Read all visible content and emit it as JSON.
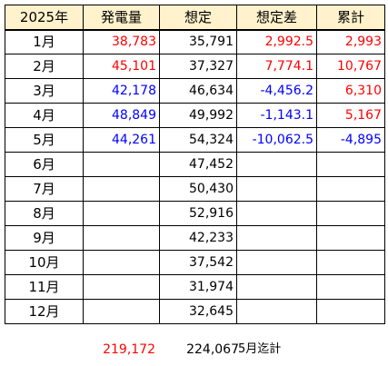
{
  "headers": [
    "2025年",
    "発電量",
    "想定",
    "想定差",
    "累計"
  ],
  "colors": {
    "header_bg": "#fff2cc",
    "positive": "#ff0000",
    "negative": "#0000ff",
    "default": "#000000"
  },
  "rows": [
    {
      "month": "1月",
      "generation": "38,783",
      "generation_color": "red",
      "expected": "35,791",
      "difference": "2,992.5",
      "difference_color": "red",
      "cumulative": "2,993",
      "cumulative_color": "red"
    },
    {
      "month": "2月",
      "generation": "45,101",
      "generation_color": "red",
      "expected": "37,327",
      "difference": "7,774.1",
      "difference_color": "red",
      "cumulative": "10,767",
      "cumulative_color": "red"
    },
    {
      "month": "3月",
      "generation": "42,178",
      "generation_color": "blue",
      "expected": "46,634",
      "difference": "-4,456.2",
      "difference_color": "blue",
      "cumulative": "6,310",
      "cumulative_color": "red"
    },
    {
      "month": "4月",
      "generation": "48,849",
      "generation_color": "blue",
      "expected": "49,992",
      "difference": "-1,143.1",
      "difference_color": "blue",
      "cumulative": "5,167",
      "cumulative_color": "red"
    },
    {
      "month": "5月",
      "generation": "44,261",
      "generation_color": "blue",
      "expected": "54,324",
      "difference": "-10,062.5",
      "difference_color": "blue",
      "cumulative": "-4,895",
      "cumulative_color": "blue"
    },
    {
      "month": "6月",
      "generation": "",
      "generation_color": "black",
      "expected": "47,452",
      "difference": "",
      "difference_color": "black",
      "cumulative": "",
      "cumulative_color": "black"
    },
    {
      "month": "7月",
      "generation": "",
      "generation_color": "black",
      "expected": "50,430",
      "difference": "",
      "difference_color": "black",
      "cumulative": "",
      "cumulative_color": "black"
    },
    {
      "month": "8月",
      "generation": "",
      "generation_color": "black",
      "expected": "52,916",
      "difference": "",
      "difference_color": "black",
      "cumulative": "",
      "cumulative_color": "black"
    },
    {
      "month": "9月",
      "generation": "",
      "generation_color": "black",
      "expected": "42,233",
      "difference": "",
      "difference_color": "black",
      "cumulative": "",
      "cumulative_color": "black"
    },
    {
      "month": "10月",
      "generation": "",
      "generation_color": "black",
      "expected": "37,542",
      "difference": "",
      "difference_color": "black",
      "cumulative": "",
      "cumulative_color": "black"
    },
    {
      "month": "11月",
      "generation": "",
      "generation_color": "black",
      "expected": "31,974",
      "difference": "",
      "difference_color": "black",
      "cumulative": "",
      "cumulative_color": "black"
    },
    {
      "month": "12月",
      "generation": "",
      "generation_color": "black",
      "expected": "32,645",
      "difference": "",
      "difference_color": "black",
      "cumulative": "",
      "cumulative_color": "black"
    }
  ],
  "totals": {
    "generation": "219,172",
    "expected": "224,067",
    "note": "5月迄計"
  }
}
